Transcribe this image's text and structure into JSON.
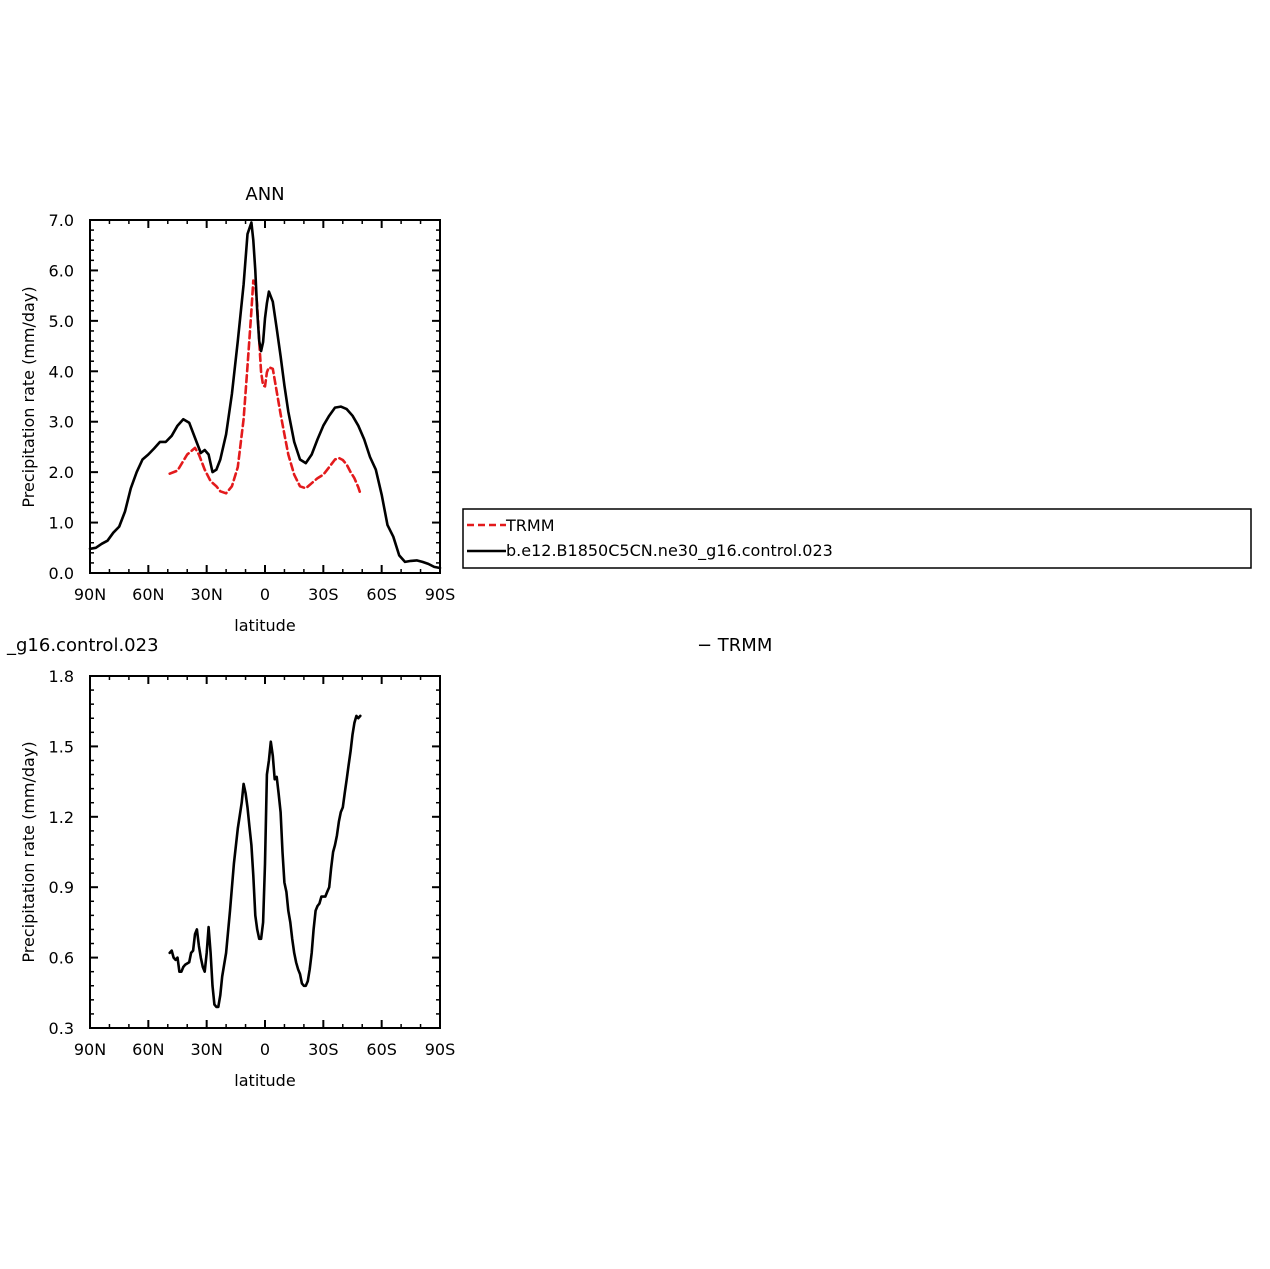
{
  "chart_data": [
    {
      "type": "line",
      "title": "ANN",
      "xlabel": "latitude",
      "ylabel": "Precipitation rate (mm/day)",
      "xlim": [
        90,
        -90
      ],
      "ylim": [
        0.0,
        7.0
      ],
      "xticks": [
        90,
        60,
        30,
        0,
        -30,
        -60,
        -90
      ],
      "xtick_labels": [
        "90N",
        "60N",
        "30N",
        "0",
        "30S",
        "60S",
        "90S"
      ],
      "yticks": [
        0,
        1,
        2,
        3,
        4,
        5,
        6,
        7
      ],
      "ytick_labels": [
        "0.0",
        "1.0",
        "2.0",
        "3.0",
        "4.0",
        "5.0",
        "6.0",
        "7.0"
      ],
      "grid": false,
      "legend_placement": "right of plot",
      "series": [
        {
          "name": "TRMM",
          "color": "#e31a1c",
          "dash": "dashed",
          "x": [
            49,
            45,
            40,
            36,
            34,
            31,
            28,
            25,
            23,
            20,
            17,
            14,
            11,
            9,
            7,
            6,
            5,
            4,
            3,
            2,
            1,
            0,
            -1,
            -2,
            -4,
            -6,
            -8,
            -10,
            -12,
            -15,
            -18,
            -21,
            -24,
            -27,
            -30,
            -33,
            -36,
            -38,
            -40,
            -42,
            -44,
            -46,
            -48,
            -49
          ],
          "y": [
            1.97,
            2.03,
            2.35,
            2.48,
            2.35,
            2.05,
            1.82,
            1.72,
            1.62,
            1.58,
            1.72,
            2.1,
            3.05,
            4.1,
            5.2,
            5.8,
            5.72,
            5.3,
            4.6,
            3.98,
            3.72,
            3.7,
            3.98,
            4.08,
            4.05,
            3.6,
            3.15,
            2.75,
            2.35,
            1.95,
            1.72,
            1.68,
            1.78,
            1.88,
            1.95,
            2.1,
            2.25,
            2.28,
            2.24,
            2.15,
            2.0,
            1.88,
            1.7,
            1.58
          ]
        },
        {
          "name": "b.e12.B1850C5CN.ne30_g16.control.023",
          "color": "#000000",
          "dash": "solid",
          "x": [
            90,
            87,
            84,
            81,
            78,
            75,
            72,
            69,
            66,
            63,
            60,
            57,
            54,
            51,
            48,
            45,
            42,
            39,
            36,
            33,
            31,
            29,
            27,
            25,
            23,
            20,
            17,
            14,
            11,
            9,
            7,
            6,
            5,
            4,
            3,
            2,
            1,
            0,
            -1,
            -2,
            -4,
            -6,
            -8,
            -10,
            -12,
            -15,
            -18,
            -21,
            -24,
            -27,
            -30,
            -33,
            -36,
            -39,
            -42,
            -45,
            -48,
            -51,
            -54,
            -57,
            -60,
            -63,
            -66,
            -69,
            -72,
            -75,
            -78,
            -81,
            -84,
            -87,
            -90
          ],
          "y": [
            0.48,
            0.5,
            0.58,
            0.64,
            0.8,
            0.92,
            1.22,
            1.68,
            2.0,
            2.25,
            2.35,
            2.47,
            2.6,
            2.6,
            2.72,
            2.92,
            3.05,
            2.98,
            2.68,
            2.38,
            2.44,
            2.35,
            2.0,
            2.05,
            2.25,
            2.75,
            3.55,
            4.6,
            5.72,
            6.72,
            6.95,
            6.6,
            6.0,
            5.2,
            4.6,
            4.4,
            4.58,
            5.05,
            5.35,
            5.58,
            5.38,
            4.85,
            4.3,
            3.72,
            3.2,
            2.6,
            2.25,
            2.18,
            2.35,
            2.65,
            2.92,
            3.12,
            3.28,
            3.3,
            3.25,
            3.12,
            2.92,
            2.65,
            2.3,
            2.05,
            1.55,
            0.95,
            0.72,
            0.35,
            0.22,
            0.24,
            0.25,
            0.22,
            0.18,
            0.12,
            0.1
          ]
        }
      ]
    },
    {
      "type": "line",
      "title": "_g16.control.023 − TRMM",
      "title_left": "_g16.control.023",
      "title_right": "− TRMM",
      "xlabel": "latitude",
      "ylabel": "Precipitation rate (mm/day)",
      "xlim": [
        90,
        -90
      ],
      "ylim": [
        0.3,
        1.8
      ],
      "xticks": [
        90,
        60,
        30,
        0,
        -30,
        -60,
        -90
      ],
      "xtick_labels": [
        "90N",
        "60N",
        "30N",
        "0",
        "30S",
        "60S",
        "90S"
      ],
      "yticks": [
        0.3,
        0.6,
        0.9,
        1.2,
        1.5,
        1.8
      ],
      "ytick_labels": [
        "0.3",
        "0.6",
        "0.9",
        "1.2",
        "1.5",
        "1.8"
      ],
      "grid": false,
      "series": [
        {
          "color": "#000000",
          "dash": "solid",
          "x": [
            49,
            48,
            47,
            46,
            45,
            44,
            43,
            42,
            41,
            39,
            38,
            37,
            36,
            35,
            34,
            33,
            32,
            31,
            30,
            29,
            28,
            27,
            26,
            25,
            24,
            23,
            22,
            20,
            18,
            16,
            14,
            12,
            11,
            10,
            9,
            8,
            7,
            6,
            5,
            4,
            3,
            2,
            1,
            0,
            -1,
            -2,
            -3,
            -4,
            -5,
            -6,
            -7,
            -8,
            -9,
            -10,
            -11,
            -12,
            -13,
            -14,
            -15,
            -16,
            -17,
            -18,
            -19,
            -20,
            -21,
            -22,
            -23,
            -24,
            -25,
            -26,
            -27,
            -28,
            -29,
            -30,
            -31,
            -32,
            -33,
            -34,
            -35,
            -36,
            -37,
            -38,
            -39,
            -40,
            -41,
            -42,
            -43,
            -44,
            -45,
            -46,
            -47,
            -48,
            -49
          ],
          "y": [
            0.62,
            0.63,
            0.6,
            0.59,
            0.6,
            0.54,
            0.54,
            0.56,
            0.57,
            0.58,
            0.62,
            0.63,
            0.7,
            0.72,
            0.65,
            0.6,
            0.56,
            0.54,
            0.62,
            0.73,
            0.62,
            0.48,
            0.4,
            0.39,
            0.39,
            0.44,
            0.52,
            0.62,
            0.8,
            1.0,
            1.15,
            1.26,
            1.34,
            1.3,
            1.24,
            1.16,
            1.08,
            0.95,
            0.78,
            0.72,
            0.68,
            0.68,
            0.75,
            1.0,
            1.38,
            1.44,
            1.52,
            1.46,
            1.36,
            1.37,
            1.3,
            1.22,
            1.05,
            0.92,
            0.88,
            0.8,
            0.75,
            0.68,
            0.62,
            0.58,
            0.55,
            0.53,
            0.49,
            0.48,
            0.48,
            0.5,
            0.55,
            0.62,
            0.72,
            0.8,
            0.82,
            0.83,
            0.86,
            0.86,
            0.86,
            0.88,
            0.9,
            0.98,
            1.05,
            1.08,
            1.12,
            1.18,
            1.22,
            1.24,
            1.3,
            1.36,
            1.42,
            1.48,
            1.55,
            1.6,
            1.63,
            1.62,
            1.63
          ]
        }
      ]
    }
  ]
}
